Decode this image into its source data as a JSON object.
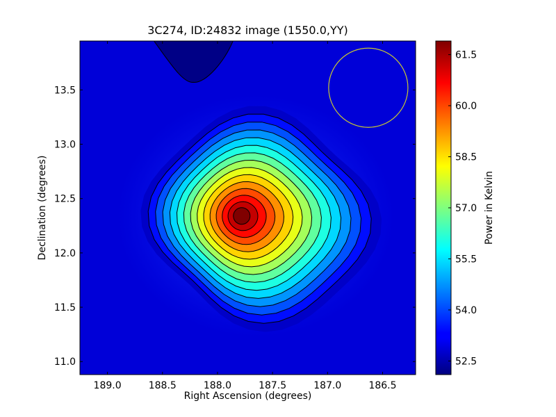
{
  "chart_data": {
    "type": "heatmap",
    "title": "3C274, ID:24832 image (1550.0,YY)",
    "xlabel": "Right Ascension (degrees)",
    "ylabel": "Declination (degrees)",
    "xlim": [
      189.25,
      186.2
    ],
    "ylim": [
      10.88,
      13.95
    ],
    "x_ticks": [
      189.0,
      188.5,
      188.0,
      187.5,
      187.0,
      186.5
    ],
    "x_tick_labels": [
      "189.0",
      "188.5",
      "188.0",
      "187.5",
      "187.0",
      "186.5"
    ],
    "y_ticks": [
      11.0,
      11.5,
      12.0,
      12.5,
      13.0,
      13.5
    ],
    "y_tick_labels": [
      "11.0",
      "11.5",
      "12.0",
      "12.5",
      "13.0",
      "13.5"
    ],
    "colormap": "jet",
    "value_range": [
      52.1,
      61.9
    ],
    "background_value": 52.5,
    "source_peak": {
      "ra": 187.78,
      "dec": 12.34,
      "value": 61.9
    },
    "circle_marker": {
      "ra": 186.63,
      "dec": 13.52,
      "radius_deg": 0.36,
      "color": "#c8c832"
    },
    "colorbar": {
      "label": "Power in Kelvin",
      "ticks": [
        52.5,
        54.0,
        55.5,
        57.0,
        58.5,
        60.0,
        61.5
      ],
      "tick_labels": [
        "52.5",
        "54.0",
        "55.5",
        "57.0",
        "58.5",
        "60.0",
        "61.5"
      ]
    },
    "grid": false,
    "legend": "none"
  }
}
